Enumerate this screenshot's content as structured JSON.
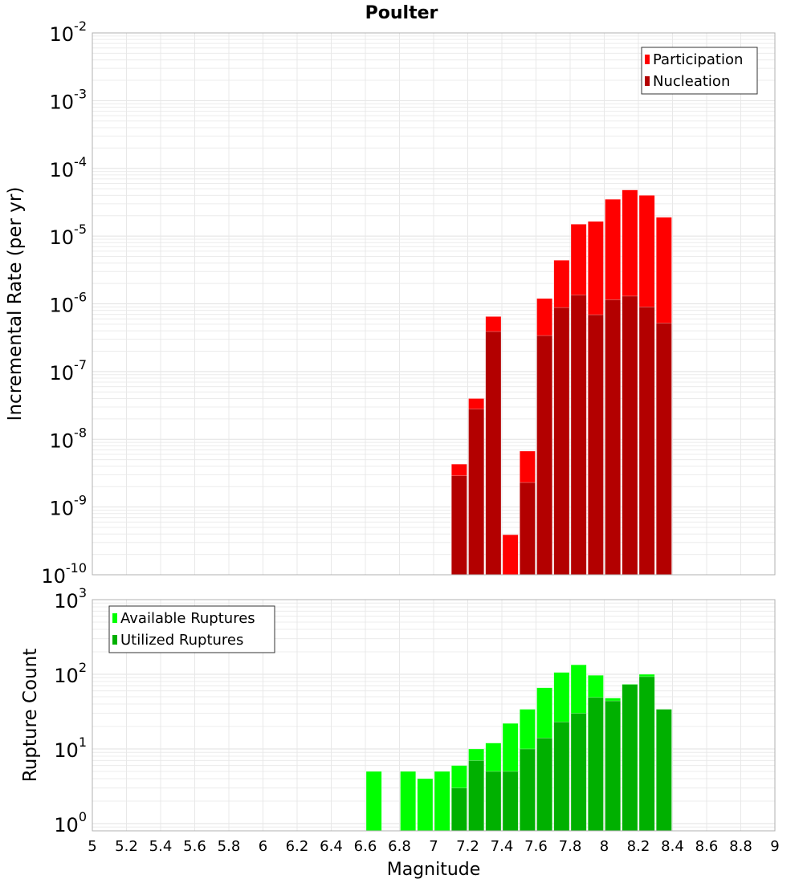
{
  "chart_data": [
    {
      "type": "bar",
      "title": "Poulter",
      "xlabel": "Magnitude",
      "ylabel": "Incremental Rate (per yr)",
      "yscale": "log",
      "ylim": [
        1e-10,
        0.01
      ],
      "xlim": [
        5,
        9
      ],
      "ytick_exponents": [
        -2,
        -3,
        -4,
        -5,
        -6,
        -7,
        -8,
        -9,
        -10
      ],
      "grid": true,
      "legend_position": "top-right",
      "x": [
        7.15,
        7.25,
        7.35,
        7.45,
        7.55,
        7.65,
        7.75,
        7.85,
        7.95,
        8.05,
        8.15,
        8.25,
        8.35
      ],
      "bin_width": 0.1,
      "series": [
        {
          "name": "Participation",
          "color": "#ff0000",
          "values": [
            4.3e-09,
            4e-08,
            6.5e-07,
            3.9e-10,
            6.7e-09,
            1.2e-06,
            4.4e-06,
            1.5e-05,
            1.65e-05,
            3.5e-05,
            4.8e-05,
            4e-05,
            1.9e-05
          ]
        },
        {
          "name": "Nucleation",
          "color": "#b30000",
          "values": [
            2.9e-09,
            2.8e-08,
            3.9e-07,
            null,
            2.3e-09,
            3.4e-07,
            8.8e-07,
            1.35e-06,
            6.9e-07,
            1.15e-06,
            1.3e-06,
            9e-07,
            5.2e-07
          ]
        }
      ]
    },
    {
      "type": "bar",
      "xlabel": "Magnitude",
      "ylabel": "Rupture Count",
      "yscale": "log",
      "ylim": [
        0.8,
        1000
      ],
      "xlim": [
        5,
        9
      ],
      "ytick_exponents": [
        3,
        2,
        1,
        0
      ],
      "xticks": [
        "5",
        "5.2",
        "5.4",
        "5.6",
        "5.8",
        "6",
        "6.2",
        "6.4",
        "6.6",
        "6.8",
        "7",
        "7.2",
        "7.4",
        "7.6",
        "7.8",
        "8",
        "8.2",
        "8.4",
        "8.6",
        "8.8",
        "9"
      ],
      "grid": true,
      "legend_position": "top-left",
      "x": [
        6.65,
        6.75,
        6.85,
        6.95,
        7.05,
        7.15,
        7.25,
        7.35,
        7.45,
        7.55,
        7.65,
        7.75,
        7.85,
        7.95,
        8.05,
        8.15,
        8.25,
        8.35
      ],
      "bin_width": 0.1,
      "series": [
        {
          "name": "Available Ruptures",
          "color": "#00ff00",
          "values": [
            5,
            null,
            5,
            4,
            5,
            6,
            10,
            12,
            22,
            34,
            66,
            106,
            134,
            97,
            48,
            74,
            100,
            34
          ]
        },
        {
          "name": "Utilized Ruptures",
          "color": "#00b000",
          "values": [
            null,
            null,
            null,
            null,
            null,
            3,
            7,
            5,
            5,
            10,
            14,
            23,
            30,
            49,
            44,
            73,
            93,
            34
          ]
        }
      ]
    }
  ]
}
